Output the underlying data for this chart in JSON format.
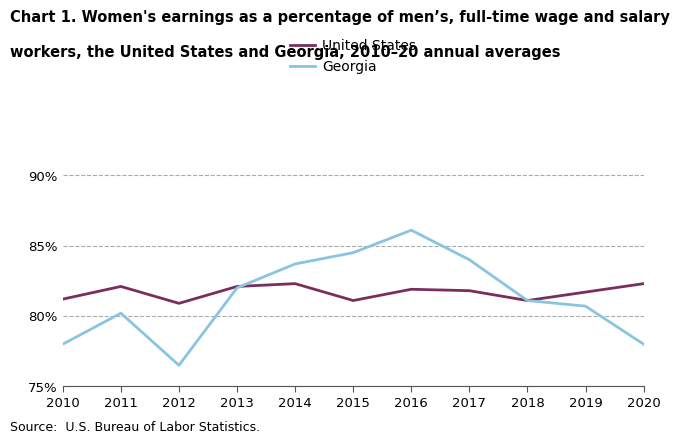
{
  "years": [
    2010,
    2011,
    2012,
    2013,
    2014,
    2015,
    2016,
    2017,
    2018,
    2019,
    2020
  ],
  "us_values": [
    81.2,
    82.1,
    80.9,
    82.1,
    82.3,
    81.1,
    81.9,
    81.8,
    81.1,
    81.7,
    82.3
  ],
  "georgia_values": [
    78.0,
    80.2,
    76.5,
    82.0,
    83.7,
    84.5,
    86.1,
    84.0,
    81.1,
    80.7,
    78.0
  ],
  "us_color": "#7B2D5E",
  "georgia_color": "#89C4E1",
  "us_label": "United States",
  "georgia_label": "Georgia",
  "ylim": [
    75,
    91
  ],
  "yticks": [
    75,
    80,
    85,
    90
  ],
  "ytick_labels": [
    "75%",
    "80%",
    "85%",
    "90%"
  ],
  "grid_color": "#aaaaaa",
  "line_width": 2.0,
  "title_line1": "Chart 1. Women's earnings as a percentage of men’s, full-time wage and salary",
  "title_line2": "workers, the United States and Georgia, 2010–20 annual averages",
  "source_text": "Source:  U.S. Bureau of Labor Statistics.",
  "title_fontsize": 10.5,
  "legend_fontsize": 10,
  "tick_fontsize": 9.5,
  "source_fontsize": 9,
  "background_color": "#ffffff"
}
